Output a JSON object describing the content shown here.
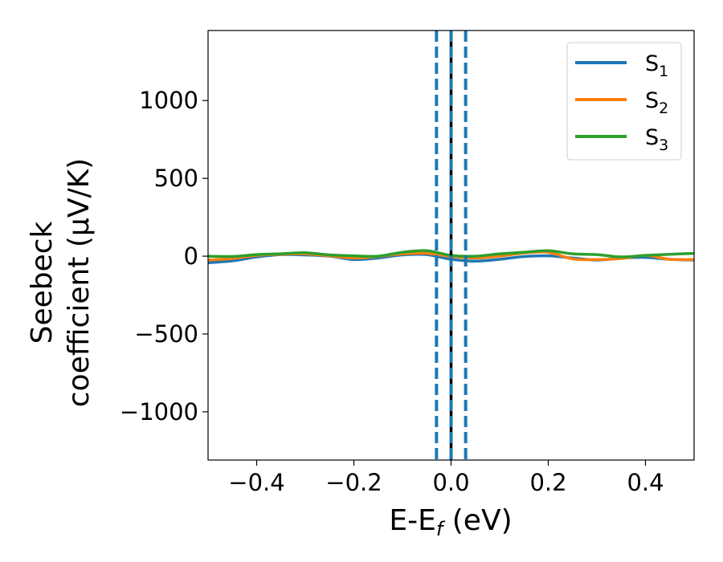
{
  "chart_data": {
    "type": "line",
    "xlabel": "E-E",
    "xlabel_sub": "f",
    "xlabel_unit": " (eV)",
    "ylabel_line1": "Seebeck",
    "ylabel_line2": "coefficient  (μV/K)",
    "xlim": [
      -0.5,
      0.5
    ],
    "ylim": [
      -1310,
      1450
    ],
    "x_ticks": [
      -0.4,
      -0.2,
      0.0,
      0.2,
      0.4
    ],
    "x_tick_labels": [
      "−0.4",
      "−0.2",
      "0.0",
      "0.2",
      "0.4"
    ],
    "y_ticks": [
      -1000,
      -500,
      0,
      500,
      1000
    ],
    "y_tick_labels": [
      "−1000",
      "−500",
      "0",
      "500",
      "1000"
    ],
    "grid": false,
    "legend_position": "top-right",
    "vertical_lines": [
      {
        "x": -0.03,
        "color": "#1f77b4",
        "style": "dashed"
      },
      {
        "x": 0.0,
        "color": "#000000",
        "style": "solid"
      },
      {
        "x": 0.0,
        "color": "#1f77b4",
        "style": "dashed"
      },
      {
        "x": 0.03,
        "color": "#1f77b4",
        "style": "dashed"
      }
    ],
    "series": [
      {
        "name": "S",
        "sub": "1",
        "color": "#1f77b4",
        "x": [
          -0.5,
          -0.45,
          -0.4,
          -0.35,
          -0.3,
          -0.25,
          -0.2,
          -0.15,
          -0.1,
          -0.05,
          0.0,
          0.05,
          0.1,
          0.15,
          0.2,
          0.25,
          0.3,
          0.35,
          0.4,
          0.45,
          0.5
        ],
        "y": [
          -42,
          -30,
          -5,
          10,
          8,
          0,
          -22,
          -12,
          8,
          10,
          -20,
          -32,
          -20,
          -2,
          2,
          -12,
          -25,
          -12,
          -8,
          -20,
          -25
        ]
      },
      {
        "name": "S",
        "sub": "2",
        "color": "#ff7f0e",
        "x": [
          -0.5,
          -0.45,
          -0.4,
          -0.35,
          -0.3,
          -0.25,
          -0.2,
          -0.15,
          -0.1,
          -0.05,
          0.0,
          0.05,
          0.1,
          0.15,
          0.2,
          0.25,
          0.3,
          0.35,
          0.4,
          0.45,
          0.5
        ],
        "y": [
          -25,
          -15,
          5,
          12,
          15,
          2,
          -12,
          -2,
          15,
          18,
          -2,
          -12,
          0,
          20,
          25,
          -18,
          -22,
          -15,
          5,
          -20,
          -22
        ]
      },
      {
        "name": "S",
        "sub": "3",
        "color": "#2ca02c",
        "x": [
          -0.5,
          -0.45,
          -0.4,
          -0.35,
          -0.3,
          -0.25,
          -0.2,
          -0.15,
          -0.1,
          -0.05,
          0.0,
          0.05,
          0.1,
          0.15,
          0.2,
          0.25,
          0.3,
          0.35,
          0.4,
          0.45,
          0.5
        ],
        "y": [
          0,
          -2,
          10,
          15,
          22,
          8,
          2,
          0,
          25,
          35,
          5,
          0,
          15,
          25,
          35,
          15,
          10,
          -5,
          5,
          12,
          18
        ]
      }
    ]
  }
}
